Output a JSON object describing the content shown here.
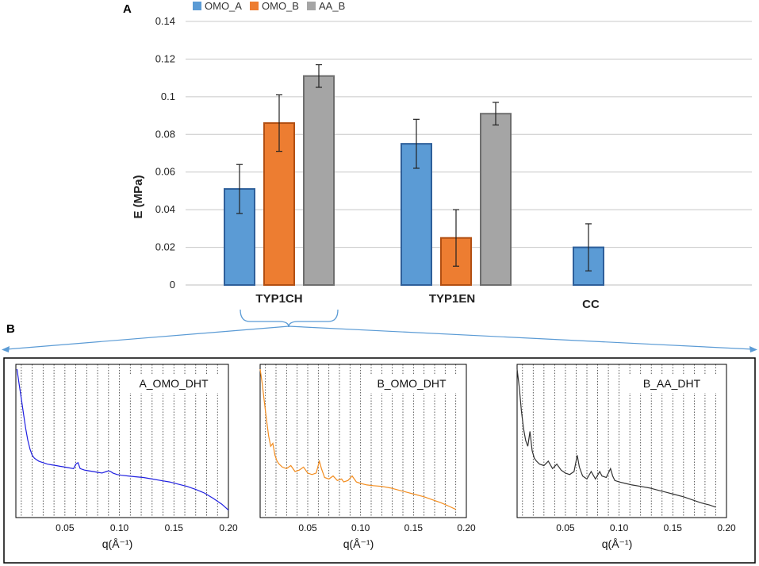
{
  "panels": {
    "a_label": "A",
    "b_label": "B"
  },
  "colors": {
    "OMO_A": "#5b9bd5",
    "OMO_B": "#ed7d31",
    "AA_B": "#a5a5a5",
    "OMO_A_stroke": "#2e5f9a",
    "OMO_B_stroke": "#b24f12",
    "AA_B_stroke": "#6e6e6e",
    "grid": "#c8c8c8",
    "connector": "#5b9bd5",
    "inset_A": "#1f1fe0",
    "inset_B": "#f28c1e",
    "inset_C": "#333333"
  },
  "chart_data": [
    {
      "type": "bar",
      "title": "",
      "xlabel": "",
      "ylabel": "E (MPa)",
      "ylim": [
        0,
        0.14
      ],
      "yticks": [
        "0",
        "0.02",
        "0.04",
        "0.06",
        "0.08",
        "0.1",
        "0.12",
        "0.14"
      ],
      "ytick_values": [
        0,
        0.02,
        0.04,
        0.06,
        0.08,
        0.1,
        0.12,
        0.14
      ],
      "categories": [
        "TYP1CH",
        "TYP1EN",
        "CC"
      ],
      "legend_position": "top",
      "series": [
        {
          "name": "OMO_A",
          "values": [
            0.051,
            0.075,
            0.02
          ],
          "errors": [
            0.013,
            0.013,
            0.0125
          ]
        },
        {
          "name": "OMO_B",
          "values": [
            0.086,
            0.025,
            null
          ],
          "errors": [
            0.015,
            0.015,
            null
          ]
        },
        {
          "name": "AA_B",
          "values": [
            0.111,
            0.091,
            null
          ],
          "errors": [
            0.006,
            0.006,
            null
          ]
        }
      ]
    },
    {
      "type": "line",
      "title": "A_OMO_DHT",
      "xlabel": "q(Å⁻¹)",
      "xlim": [
        0.005,
        0.2
      ],
      "xticks": [
        "0.05",
        "0.10",
        "0.15",
        "0.20"
      ],
      "xtick_values": [
        0.05,
        0.1,
        0.15,
        0.2
      ],
      "series": [
        {
          "name": "A_OMO_DHT",
          "x": [
            0.006,
            0.008,
            0.01,
            0.012,
            0.014,
            0.016,
            0.018,
            0.02,
            0.022,
            0.024,
            0.026,
            0.028,
            0.03,
            0.034,
            0.038,
            0.042,
            0.046,
            0.05,
            0.054,
            0.058,
            0.06,
            0.062,
            0.064,
            0.068,
            0.072,
            0.076,
            0.08,
            0.084,
            0.088,
            0.09,
            0.092,
            0.094,
            0.098,
            0.102,
            0.108,
            0.115,
            0.122,
            0.13,
            0.138,
            0.146,
            0.154,
            0.162,
            0.17,
            0.178,
            0.186,
            0.194,
            0.2
          ],
          "y": [
            1.0,
            0.9,
            0.8,
            0.7,
            0.6,
            0.52,
            0.46,
            0.42,
            0.4,
            0.39,
            0.38,
            0.375,
            0.37,
            0.36,
            0.355,
            0.35,
            0.345,
            0.34,
            0.335,
            0.33,
            0.36,
            0.37,
            0.33,
            0.32,
            0.315,
            0.31,
            0.305,
            0.3,
            0.31,
            0.315,
            0.31,
            0.3,
            0.29,
            0.285,
            0.28,
            0.275,
            0.27,
            0.26,
            0.25,
            0.24,
            0.225,
            0.21,
            0.19,
            0.165,
            0.13,
            0.09,
            0.05
          ]
        }
      ]
    },
    {
      "type": "line",
      "title": "B_OMO_DHT",
      "xlabel": "q(Å⁻¹)",
      "xlim": [
        0.005,
        0.2
      ],
      "xticks": [
        "0.05",
        "0.10",
        "0.15",
        "0.20"
      ],
      "xtick_values": [
        0.05,
        0.1,
        0.15,
        0.2
      ],
      "series": [
        {
          "name": "B_OMO_DHT",
          "x": [
            0.005,
            0.007,
            0.009,
            0.011,
            0.013,
            0.015,
            0.017,
            0.019,
            0.021,
            0.023,
            0.026,
            0.03,
            0.034,
            0.038,
            0.042,
            0.046,
            0.05,
            0.054,
            0.058,
            0.061,
            0.063,
            0.066,
            0.07,
            0.074,
            0.078,
            0.082,
            0.084,
            0.088,
            0.092,
            0.094,
            0.096,
            0.1,
            0.106,
            0.112,
            0.12,
            0.128,
            0.136,
            0.144,
            0.152,
            0.16,
            0.168,
            0.176,
            0.184,
            0.19
          ],
          "y": [
            1.0,
            0.9,
            0.78,
            0.66,
            0.55,
            0.48,
            0.5,
            0.42,
            0.38,
            0.36,
            0.34,
            0.33,
            0.35,
            0.31,
            0.32,
            0.34,
            0.3,
            0.29,
            0.3,
            0.38,
            0.33,
            0.27,
            0.26,
            0.28,
            0.25,
            0.26,
            0.24,
            0.25,
            0.28,
            0.26,
            0.24,
            0.23,
            0.22,
            0.215,
            0.21,
            0.2,
            0.185,
            0.17,
            0.155,
            0.14,
            0.12,
            0.1,
            0.075,
            0.055
          ]
        }
      ]
    },
    {
      "type": "line",
      "title": "B_AA_DHT",
      "xlabel": "q(Å⁻¹)",
      "xlim": [
        0.005,
        0.2
      ],
      "xticks": [
        "0.05",
        "0.10",
        "0.15",
        "0.20"
      ],
      "xtick_values": [
        0.05,
        0.1,
        0.15,
        0.2
      ],
      "series": [
        {
          "name": "B_AA_DHT",
          "x": [
            0.005,
            0.007,
            0.009,
            0.011,
            0.013,
            0.015,
            0.017,
            0.019,
            0.021,
            0.023,
            0.026,
            0.03,
            0.034,
            0.038,
            0.042,
            0.046,
            0.05,
            0.054,
            0.058,
            0.061,
            0.063,
            0.066,
            0.07,
            0.074,
            0.078,
            0.082,
            0.084,
            0.088,
            0.092,
            0.094,
            0.096,
            0.1,
            0.106,
            0.112,
            0.12,
            0.128,
            0.136,
            0.144,
            0.152,
            0.16,
            0.168,
            0.176,
            0.184,
            0.19
          ],
          "y": [
            1.0,
            0.88,
            0.72,
            0.6,
            0.52,
            0.48,
            0.58,
            0.45,
            0.4,
            0.38,
            0.36,
            0.35,
            0.38,
            0.33,
            0.36,
            0.32,
            0.3,
            0.29,
            0.31,
            0.42,
            0.34,
            0.28,
            0.26,
            0.31,
            0.26,
            0.31,
            0.28,
            0.27,
            0.33,
            0.28,
            0.25,
            0.24,
            0.23,
            0.22,
            0.21,
            0.2,
            0.185,
            0.17,
            0.155,
            0.14,
            0.12,
            0.1,
            0.085,
            0.07
          ]
        }
      ]
    }
  ]
}
